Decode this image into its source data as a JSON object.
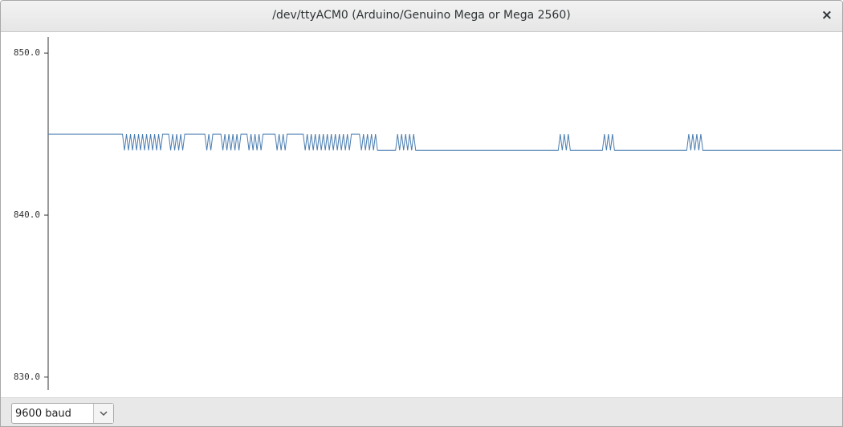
{
  "window": {
    "title": "/dev/ttyACM0 (Arduino/Genuino Mega or Mega 2560)",
    "close": "×"
  },
  "footer": {
    "baud": "9600 baud"
  },
  "chart_data": {
    "type": "line",
    "ylim": [
      829.2,
      851
    ],
    "yticks": [
      {
        "value": 830,
        "label": "830.0"
      },
      {
        "value": 840,
        "label": "840.0"
      },
      {
        "value": 850,
        "label": "850.0"
      }
    ],
    "series": [
      {
        "color": "#4a7db0",
        "values": [
          845,
          845,
          845,
          845,
          845,
          845,
          845,
          845,
          845,
          845,
          845,
          845,
          845,
          845,
          845,
          845,
          845,
          845,
          845,
          845,
          845,
          845,
          845,
          845,
          845,
          845,
          845,
          845,
          845,
          845,
          845,
          845,
          845,
          845,
          845,
          845,
          845,
          845,
          844,
          845,
          844,
          845,
          844,
          845,
          844,
          845,
          844,
          845,
          844,
          845,
          844,
          845,
          844,
          845,
          844,
          845,
          844,
          845,
          845,
          845,
          845,
          844,
          845,
          844,
          845,
          844,
          845,
          844,
          845,
          845,
          845,
          845,
          845,
          845,
          845,
          845,
          845,
          845,
          845,
          844,
          845,
          844,
          845,
          845,
          845,
          845,
          845,
          844,
          845,
          844,
          845,
          844,
          845,
          844,
          845,
          844,
          845,
          845,
          845,
          845,
          844,
          845,
          844,
          845,
          844,
          845,
          844,
          845,
          845,
          845,
          845,
          845,
          845,
          845,
          844,
          845,
          844,
          845,
          844,
          845,
          845,
          845,
          845,
          845,
          845,
          845,
          845,
          845,
          844,
          845,
          844,
          845,
          844,
          845,
          844,
          845,
          844,
          845,
          844,
          845,
          844,
          845,
          844,
          845,
          844,
          845,
          844,
          845,
          844,
          845,
          844,
          845,
          845,
          845,
          845,
          845,
          844,
          845,
          844,
          845,
          844,
          845,
          844,
          845,
          844,
          844,
          844,
          844,
          844,
          844,
          844,
          844,
          844,
          844,
          845,
          844,
          845,
          844,
          845,
          844,
          845,
          844,
          845,
          844,
          844,
          844,
          844,
          844,
          844,
          844,
          844,
          844,
          844,
          844,
          844,
          844,
          844,
          844,
          844,
          844,
          844,
          844,
          844,
          844,
          844,
          844,
          844,
          844,
          844,
          844,
          844,
          844,
          844,
          844,
          844,
          844,
          844,
          844,
          844,
          844,
          844,
          844,
          844,
          844,
          844,
          844,
          844,
          844,
          844,
          844,
          844,
          844,
          844,
          844,
          844,
          844,
          844,
          844,
          844,
          844,
          844,
          844,
          844,
          844,
          844,
          844,
          844,
          844,
          844,
          844,
          844,
          844,
          844,
          844,
          844,
          845,
          844,
          845,
          844,
          845,
          844,
          844,
          844,
          844,
          844,
          844,
          844,
          844,
          844,
          844,
          844,
          844,
          844,
          844,
          844,
          844,
          844,
          845,
          844,
          845,
          844,
          845,
          844,
          844,
          844,
          844,
          844,
          844,
          844,
          844,
          844,
          844,
          844,
          844,
          844,
          844,
          844,
          844,
          844,
          844,
          844,
          844,
          844,
          844,
          844,
          844,
          844,
          844,
          844,
          844,
          844,
          844,
          844,
          844,
          844,
          844,
          844,
          844,
          844,
          845,
          844,
          845,
          844,
          845,
          844,
          845,
          844,
          844,
          844,
          844,
          844,
          844,
          844,
          844,
          844,
          844,
          844,
          844,
          844,
          844,
          844,
          844,
          844,
          844,
          844,
          844,
          844,
          844,
          844,
          844,
          844,
          844,
          844,
          844,
          844,
          844,
          844,
          844,
          844,
          844,
          844,
          844,
          844,
          844,
          844,
          844,
          844,
          844,
          844,
          844,
          844,
          844,
          844,
          844,
          844,
          844,
          844,
          844,
          844,
          844,
          844,
          844,
          844,
          844,
          844,
          844,
          844,
          844,
          844,
          844,
          844,
          844,
          844,
          844,
          844,
          844
        ]
      }
    ]
  }
}
